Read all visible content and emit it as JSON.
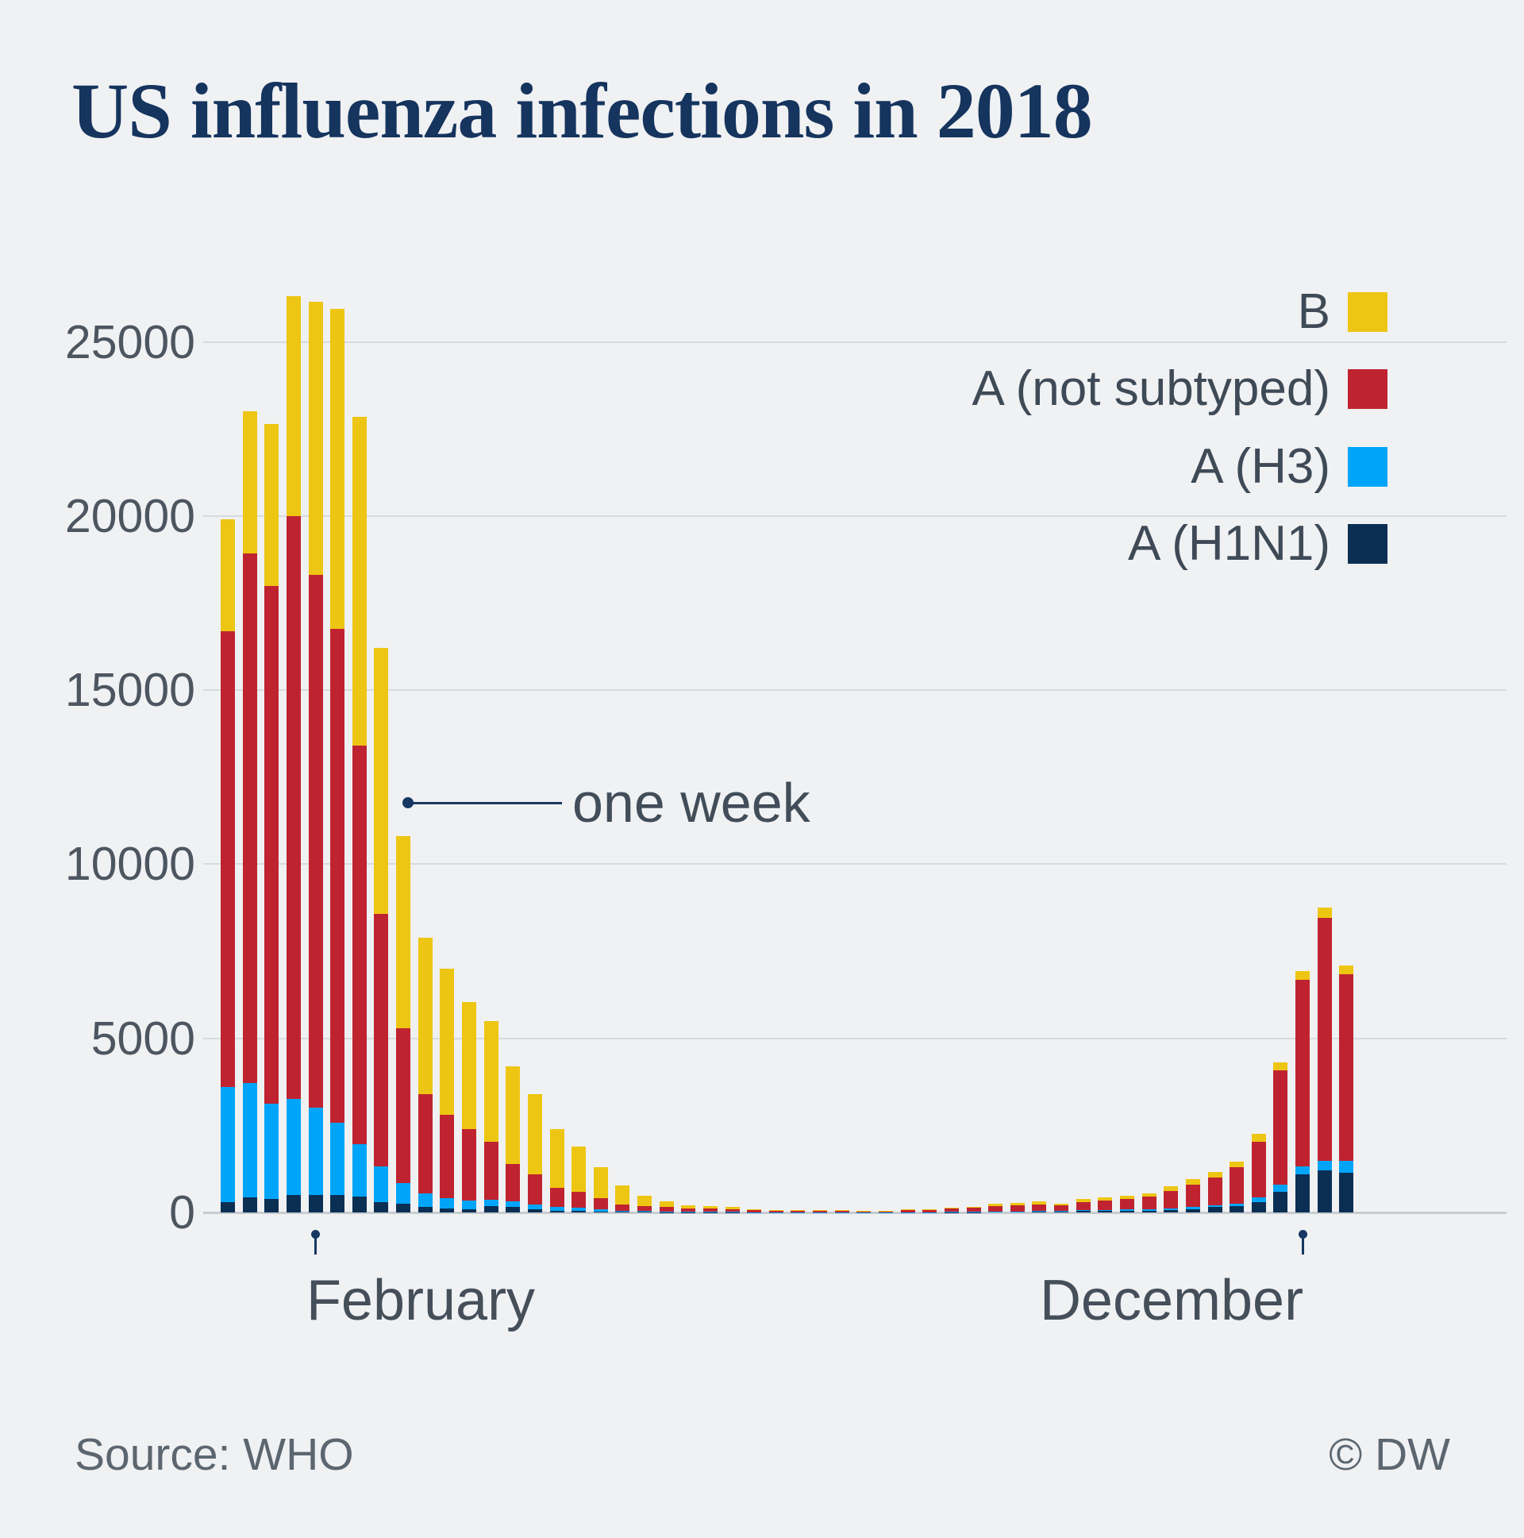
{
  "title": "US influenza infections in 2018",
  "footer": {
    "source": "Source: WHO",
    "copyright": "© DW"
  },
  "colors": {
    "background": "#f0f1f3",
    "title": "#15345e",
    "axis_text": "#4d5660",
    "legend_text": "#3e4a56",
    "grid": "#d8dbde",
    "zero_line": "#c7ccd1",
    "annotation": "#173862",
    "b": "#edc613",
    "a_not_subtyped": "#c02330",
    "a_h3": "#00a5fa",
    "a_h1n1": "#0b2f53"
  },
  "chart_data": {
    "type": "bar",
    "stacked": true,
    "title": "US influenza infections in 2018",
    "xlabel": "",
    "ylabel": "",
    "x_unit": "week",
    "weeks": 52,
    "yticks": [
      0,
      5000,
      10000,
      15000,
      20000,
      25000
    ],
    "ylim": [
      0,
      26500
    ],
    "grid": true,
    "legend_position": "top-right",
    "legend": [
      {
        "label": "B",
        "color_key": "b"
      },
      {
        "label": "A (not subtyped)",
        "color_key": "a_not_subtyped"
      },
      {
        "label": "A (H3)",
        "color_key": "a_h3"
      },
      {
        "label": "A (H1N1)",
        "color_key": "a_h1n1"
      }
    ],
    "series": [
      {
        "name": "A (H1N1)",
        "color_key": "a_h1n1",
        "values": [
          300,
          430,
          390,
          510,
          510,
          510,
          460,
          300,
          240,
          150,
          120,
          100,
          180,
          150,
          80,
          55,
          40,
          30,
          20,
          15,
          10,
          8,
          8,
          6,
          5,
          4,
          3,
          3,
          3,
          2,
          2,
          4,
          4,
          6,
          8,
          12,
          15,
          25,
          20,
          35,
          40,
          50,
          55,
          70,
          100,
          150,
          185,
          300,
          590,
          1100,
          1200,
          1150
        ]
      },
      {
        "name": "A (H3)",
        "color_key": "a_h3",
        "values": [
          3310,
          3290,
          2740,
          2760,
          2510,
          2060,
          1500,
          1030,
          600,
          400,
          300,
          250,
          180,
          180,
          150,
          110,
          90,
          60,
          30,
          20,
          15,
          10,
          10,
          8,
          6,
          5,
          4,
          4,
          5,
          3,
          3,
          6,
          6,
          8,
          10,
          14,
          18,
          20,
          18,
          30,
          35,
          40,
          45,
          45,
          50,
          50,
          70,
          130,
          210,
          220,
          280,
          330
        ]
      },
      {
        "name": "A (not subtyped)",
        "color_key": "a_not_subtyped",
        "values": [
          13090,
          15210,
          14870,
          16730,
          15280,
          14180,
          11440,
          7240,
          4460,
          2850,
          2380,
          2050,
          1670,
          1070,
          870,
          535,
          455,
          320,
          180,
          155,
          125,
          90,
          85,
          70,
          50,
          40,
          35,
          35,
          45,
          28,
          28,
          70,
          65,
          90,
          110,
          152,
          168,
          190,
          162,
          230,
          265,
          300,
          350,
          500,
          650,
          800,
          1045,
          1600,
          3270,
          5370,
          6980,
          5360
        ]
      },
      {
        "name": "B",
        "color_key": "b",
        "values": [
          3200,
          4070,
          4650,
          6300,
          7850,
          9200,
          9450,
          7630,
          5500,
          4500,
          4200,
          3650,
          3470,
          2800,
          2300,
          1700,
          1315,
          890,
          540,
          280,
          180,
          100,
          90,
          66,
          30,
          26,
          18,
          18,
          22,
          12,
          12,
          20,
          20,
          36,
          42,
          62,
          79,
          75,
          60,
          95,
          90,
          90,
          100,
          140,
          160,
          165,
          160,
          230,
          250,
          250,
          290,
          240
        ]
      }
    ],
    "x_markers": [
      {
        "label": "February",
        "week": 5
      },
      {
        "label": "December",
        "week": 50
      }
    ],
    "annotation": {
      "text": "one week",
      "points_to_week": 9
    }
  }
}
